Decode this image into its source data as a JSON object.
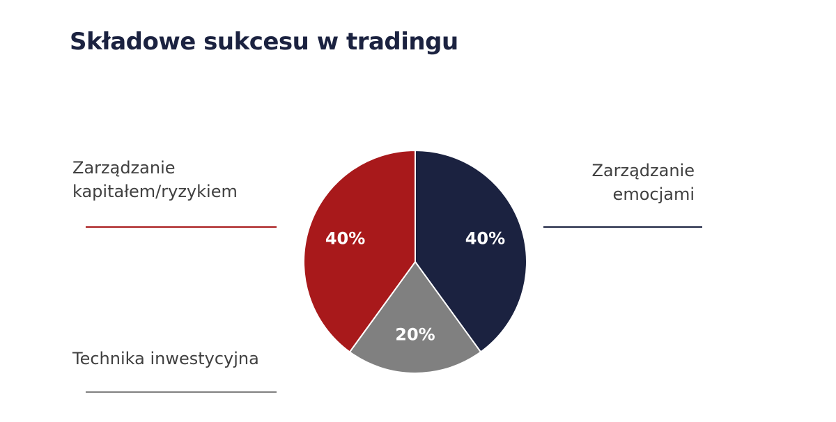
{
  "chart_data": {
    "type": "pie",
    "title": "Składowe sukcesu w tradingu",
    "categories": [
      "Zarządzanie emocjami",
      "Technika inwestycyjna",
      "Zarządzanie kapitałem/ryzykiem"
    ],
    "values": [
      40,
      20,
      40
    ],
    "value_labels": [
      "40%",
      "20%",
      "40%"
    ],
    "colors": [
      "#1b2240",
      "#808080",
      "#a8191b"
    ]
  }
}
